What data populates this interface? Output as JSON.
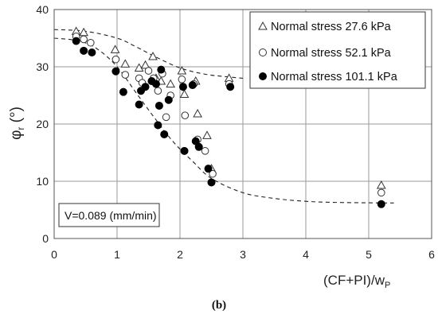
{
  "chart_data": {
    "type": "scatter",
    "x_axis": {
      "label_main": "(CF+PI)/w",
      "label_sub": "P",
      "min": 0,
      "max": 6,
      "ticks": [
        0,
        1,
        2,
        3,
        4,
        5,
        6
      ]
    },
    "y_axis": {
      "label_main": "φ",
      "label_sub": "r",
      "label_tail": " (°)",
      "min": 0,
      "max": 40,
      "ticks": [
        0,
        10,
        20,
        30,
        40
      ]
    },
    "grid": true,
    "legend_placement": "top-right",
    "series": [
      {
        "name": "Normal stress 27.6 kPa",
        "marker": "open-triangle",
        "points": [
          [
            0.35,
            36.2
          ],
          [
            0.47,
            36.0
          ],
          [
            0.97,
            33.0
          ],
          [
            1.13,
            30.5
          ],
          [
            1.35,
            29.8
          ],
          [
            1.45,
            30.3
          ],
          [
            1.57,
            31.8
          ],
          [
            1.62,
            28.0
          ],
          [
            1.7,
            27.5
          ],
          [
            1.85,
            27.0
          ],
          [
            2.03,
            29.3
          ],
          [
            2.07,
            25.2
          ],
          [
            2.25,
            27.5
          ],
          [
            2.28,
            21.8
          ],
          [
            2.43,
            18.0
          ],
          [
            2.5,
            12.2
          ],
          [
            2.78,
            28.0
          ],
          [
            5.2,
            9.3
          ]
        ]
      },
      {
        "name": "Normal stress 52.1 kPa",
        "marker": "open-circle",
        "points": [
          [
            0.35,
            35.3
          ],
          [
            0.47,
            34.8
          ],
          [
            0.58,
            34.2
          ],
          [
            0.98,
            31.3
          ],
          [
            1.13,
            28.6
          ],
          [
            1.35,
            28.0
          ],
          [
            1.4,
            27.2
          ],
          [
            1.5,
            29.3
          ],
          [
            1.58,
            28.0
          ],
          [
            1.65,
            25.8
          ],
          [
            1.72,
            28.8
          ],
          [
            1.78,
            21.2
          ],
          [
            1.85,
            25.0
          ],
          [
            2.03,
            27.8
          ],
          [
            2.08,
            21.5
          ],
          [
            2.22,
            27.0
          ],
          [
            2.28,
            17.3
          ],
          [
            2.4,
            15.3
          ],
          [
            2.52,
            11.3
          ],
          [
            2.78,
            27.0
          ],
          [
            5.2,
            8.0
          ]
        ]
      },
      {
        "name": "Normal stress 101.1 kPa",
        "marker": "filled-circle",
        "points": [
          [
            0.35,
            34.5
          ],
          [
            0.47,
            32.8
          ],
          [
            0.6,
            32.5
          ],
          [
            0.98,
            29.2
          ],
          [
            1.1,
            25.6
          ],
          [
            1.35,
            23.4
          ],
          [
            1.38,
            25.8
          ],
          [
            1.45,
            26.5
          ],
          [
            1.55,
            27.5
          ],
          [
            1.62,
            27.0
          ],
          [
            1.65,
            19.8
          ],
          [
            1.67,
            23.2
          ],
          [
            1.7,
            29.5
          ],
          [
            1.75,
            18.2
          ],
          [
            1.82,
            24.2
          ],
          [
            2.05,
            26.5
          ],
          [
            2.07,
            15.3
          ],
          [
            2.2,
            26.8
          ],
          [
            2.25,
            17.0
          ],
          [
            2.3,
            16.0
          ],
          [
            2.45,
            12.2
          ],
          [
            2.5,
            9.8
          ],
          [
            2.8,
            26.5
          ],
          [
            5.2,
            6.0
          ]
        ]
      }
    ],
    "trend_curves": [
      {
        "style": "dashed",
        "points": [
          [
            0,
            36.5
          ],
          [
            0.5,
            36.2
          ],
          [
            1.0,
            35.0
          ],
          [
            1.3,
            33.5
          ],
          [
            1.6,
            31.8
          ],
          [
            2.0,
            29.8
          ],
          [
            2.4,
            28.7
          ],
          [
            2.8,
            28.2
          ],
          [
            3.0,
            28.0
          ]
        ]
      },
      {
        "style": "dashed",
        "points": [
          [
            0,
            35.0
          ],
          [
            0.4,
            34.5
          ],
          [
            0.7,
            33.0
          ],
          [
            1.0,
            30.0
          ],
          [
            1.3,
            25.5
          ],
          [
            1.6,
            21.0
          ],
          [
            1.9,
            16.8
          ],
          [
            2.2,
            13.5
          ],
          [
            2.5,
            10.5
          ],
          [
            3.0,
            8.0
          ],
          [
            3.5,
            7.0
          ],
          [
            4.0,
            6.5
          ],
          [
            4.5,
            6.3
          ],
          [
            5.4,
            6.2
          ]
        ]
      }
    ],
    "annotation": "V=0.089 (mm/min)",
    "panel_label": "(b)"
  }
}
